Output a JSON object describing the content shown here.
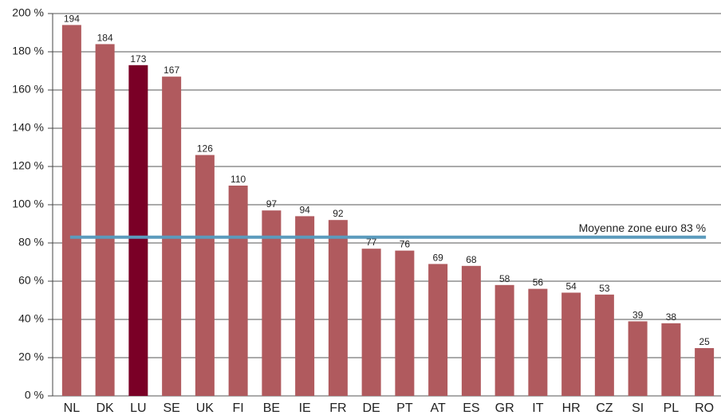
{
  "chart_data": {
    "type": "bar",
    "categories": [
      "NL",
      "DK",
      "LU",
      "SE",
      "UK",
      "FI",
      "BE",
      "IE",
      "FR",
      "DE",
      "PT",
      "AT",
      "ES",
      "GR",
      "IT",
      "HR",
      "CZ",
      "SI",
      "PL",
      "RO"
    ],
    "values": [
      194,
      184,
      173,
      167,
      126,
      110,
      97,
      94,
      92,
      77,
      76,
      69,
      68,
      58,
      56,
      54,
      53,
      39,
      38,
      25
    ],
    "colors": [
      "#b05a5e",
      "#b05a5e",
      "#7a0026",
      "#b05a5e",
      "#b05a5e",
      "#b05a5e",
      "#b05a5e",
      "#b05a5e",
      "#b05a5e",
      "#b05a5e",
      "#b05a5e",
      "#b05a5e",
      "#b05a5e",
      "#b05a5e",
      "#b05a5e",
      "#b05a5e",
      "#b05a5e",
      "#b05a5e",
      "#b05a5e",
      "#b05a5e"
    ],
    "ylim": [
      0,
      200
    ],
    "yticks": [
      {
        "value": 0,
        "label": "0 %"
      },
      {
        "value": 20,
        "label": "20 %"
      },
      {
        "value": 40,
        "label": "40 %"
      },
      {
        "value": 60,
        "label": "60 %"
      },
      {
        "value": 80,
        "label": "80 %"
      },
      {
        "value": 100,
        "label": "100 %"
      },
      {
        "value": 120,
        "label": "120 %"
      },
      {
        "value": 140,
        "label": "140 %"
      },
      {
        "value": 160,
        "label": "160 %"
      },
      {
        "value": 180,
        "label": "180 %"
      },
      {
        "value": 200,
        "label": "200 %"
      }
    ],
    "grid": true,
    "reference_line": {
      "value": 83,
      "label": "Moyenne zone euro 83 %",
      "color": "#5b9bbd"
    }
  }
}
